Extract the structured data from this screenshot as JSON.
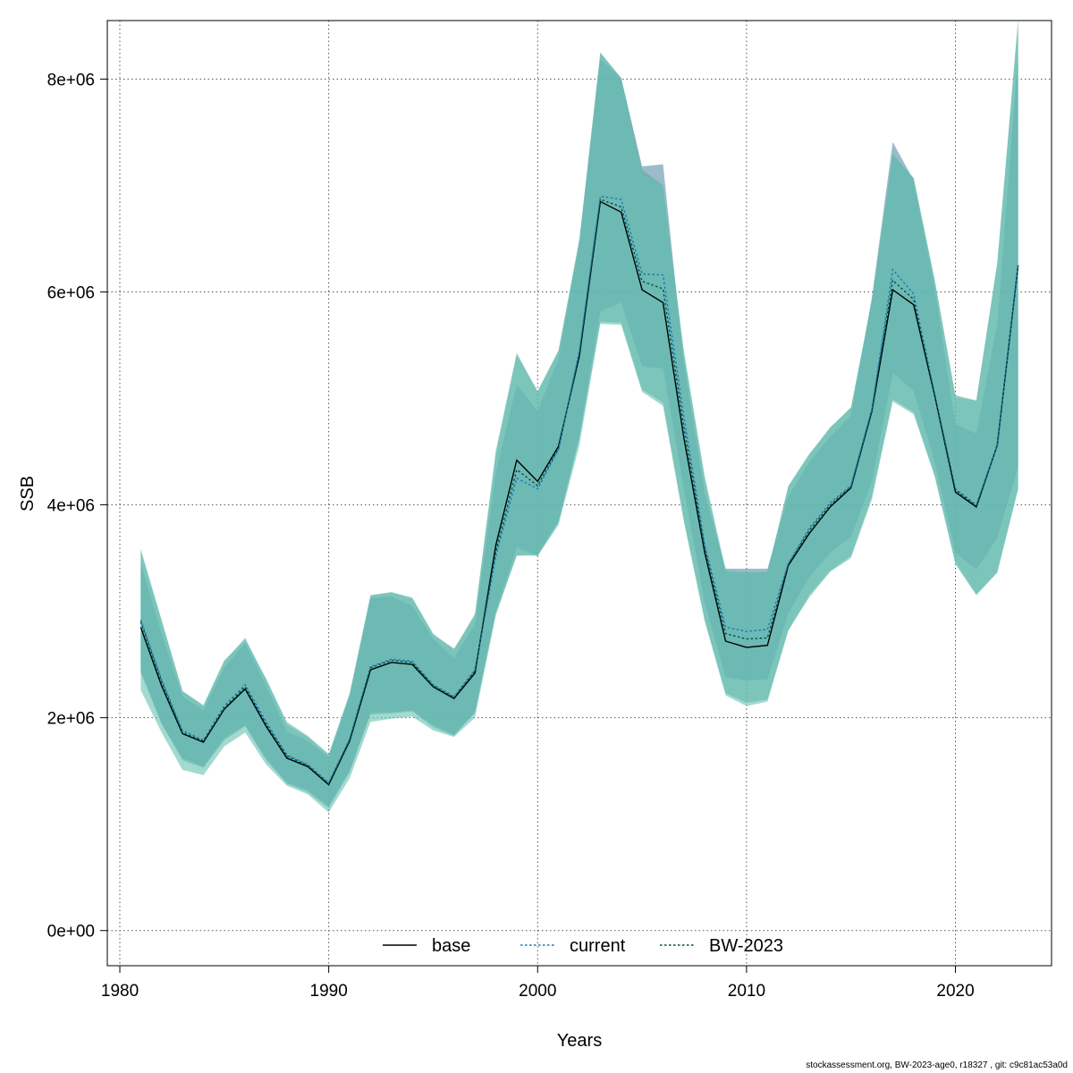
{
  "chart_data": {
    "type": "area",
    "xlabel": "Years",
    "ylabel": "SSB",
    "xlim": [
      1979.4,
      2024.6
    ],
    "ylim": [
      -330000,
      8550000
    ],
    "x_ticks": [
      1980,
      1990,
      2000,
      2010,
      2020
    ],
    "x_tick_labels": [
      "1980",
      "1990",
      "2000",
      "2010",
      "2020"
    ],
    "y_ticks": [
      0,
      2000000,
      4000000,
      6000000,
      8000000
    ],
    "y_tick_labels": [
      "0e+00",
      "2e+06",
      "4e+06",
      "6e+06",
      "8e+06"
    ],
    "grid": true,
    "legend_position": "bottom",
    "years": [
      1981,
      1982,
      1983,
      1984,
      1985,
      1986,
      1987,
      1988,
      1989,
      1990,
      1991,
      1992,
      1993,
      1994,
      1995,
      1996,
      1997,
      1998,
      1999,
      2000,
      2001,
      2002,
      2003,
      2004,
      2005,
      2006,
      2007,
      2008,
      2009,
      2010,
      2011,
      2012,
      2013,
      2014,
      2015,
      2016,
      2017,
      2018,
      2019,
      2020,
      2021,
      2022,
      2023
    ],
    "series": [
      {
        "name": "base",
        "color": "#000000",
        "dash": "solid",
        "band_color": "#5a8fa8",
        "values": [
          2850000,
          2300000,
          1850000,
          1770000,
          2080000,
          2270000,
          1920000,
          1620000,
          1540000,
          1370000,
          1780000,
          2450000,
          2520000,
          2500000,
          2290000,
          2180000,
          2420000,
          3620000,
          4420000,
          4220000,
          4550000,
          5400000,
          6850000,
          6750000,
          6020000,
          5900000,
          4630000,
          3550000,
          2720000,
          2660000,
          2680000,
          3430000,
          3730000,
          3980000,
          4160000,
          4880000,
          6020000,
          5880000,
          5030000,
          4120000,
          3980000,
          4560000,
          6250000
        ],
        "lower": [
          2450000,
          1950000,
          1620000,
          1540000,
          1810000,
          1930000,
          1620000,
          1390000,
          1320000,
          1170000,
          1500000,
          2050000,
          2050000,
          2070000,
          1930000,
          1840000,
          2050000,
          3000000,
          3600000,
          3520000,
          3850000,
          4650000,
          5820000,
          5900000,
          5300000,
          5280000,
          4150000,
          3080000,
          2380000,
          2350000,
          2360000,
          2980000,
          3320000,
          3550000,
          3700000,
          4220000,
          5240000,
          5070000,
          4410000,
          3550000,
          3390000,
          3690000,
          4350000
        ],
        "upper": [
          3450000,
          2790000,
          2200000,
          2070000,
          2470000,
          2700000,
          2300000,
          1870000,
          1780000,
          1630000,
          2200000,
          3120000,
          3140000,
          3050000,
          2740000,
          2560000,
          2880000,
          4300000,
          5130000,
          4880000,
          5370000,
          6480000,
          8190000,
          8010000,
          7180000,
          7200000,
          5330000,
          4110000,
          3400000,
          3400000,
          3400000,
          4080000,
          4400000,
          4640000,
          4840000,
          5950000,
          7410000,
          7050000,
          6040000,
          4760000,
          4670000,
          5700000,
          8220000
        ]
      },
      {
        "name": "current",
        "color": "#1f77b4",
        "dash": "dotted",
        "band_color": "#5ea8a8",
        "values": [
          2920000,
          2360000,
          1880000,
          1790000,
          2110000,
          2310000,
          1960000,
          1650000,
          1560000,
          1390000,
          1800000,
          2480000,
          2550000,
          2530000,
          2310000,
          2200000,
          2450000,
          3520000,
          4250000,
          4150000,
          4520000,
          5450000,
          6900000,
          6870000,
          6170000,
          6160000,
          4830000,
          3620000,
          2850000,
          2810000,
          2830000,
          3450000,
          3780000,
          4020000,
          4180000,
          4900000,
          6210000,
          5980000,
          5040000,
          4150000,
          4000000,
          4560000,
          6250000
        ],
        "lower": [
          2420000,
          1940000,
          1600000,
          1530000,
          1790000,
          1920000,
          1600000,
          1380000,
          1300000,
          1150000,
          1490000,
          2030000,
          2040000,
          2060000,
          1910000,
          1830000,
          2050000,
          2980000,
          3520000,
          3530000,
          3830000,
          4620000,
          5720000,
          5710000,
          5080000,
          4960000,
          3860000,
          2920000,
          2230000,
          2140000,
          2170000,
          2820000,
          3150000,
          3380000,
          3520000,
          4080000,
          4990000,
          4870000,
          4280000,
          3460000,
          3160000,
          3370000,
          4160000
        ],
        "upper": [
          3560000,
          2910000,
          2250000,
          2110000,
          2530000,
          2750000,
          2360000,
          1940000,
          1820000,
          1650000,
          2220000,
          3150000,
          3180000,
          3120000,
          2780000,
          2650000,
          2960000,
          4480000,
          5410000,
          5070000,
          5450000,
          6500000,
          8250000,
          8010000,
          7150000,
          7000000,
          5420000,
          4230000,
          3370000,
          3360000,
          3370000,
          4170000,
          4470000,
          4730000,
          4910000,
          5920000,
          7290000,
          7070000,
          6120000,
          5030000,
          4980000,
          6280000,
          8550000
        ]
      },
      {
        "name": "BW-2023",
        "color": "#004d4d",
        "dash": "dotted",
        "band_color": "#66c2b0",
        "values": [
          2900000,
          2340000,
          1860000,
          1780000,
          2090000,
          2290000,
          1940000,
          1640000,
          1550000,
          1380000,
          1790000,
          2470000,
          2540000,
          2520000,
          2300000,
          2190000,
          2440000,
          3560000,
          4330000,
          4180000,
          4530000,
          5420000,
          6870000,
          6800000,
          6100000,
          6030000,
          4730000,
          3590000,
          2790000,
          2740000,
          2750000,
          3440000,
          3760000,
          4000000,
          4170000,
          4890000,
          6110000,
          5930000,
          5040000,
          4140000,
          3990000,
          4560000,
          6250000
        ],
        "lower": [
          2260000,
          1860000,
          1510000,
          1460000,
          1730000,
          1860000,
          1560000,
          1360000,
          1280000,
          1110000,
          1430000,
          1960000,
          1990000,
          2010000,
          1880000,
          1820000,
          2000000,
          2960000,
          3530000,
          3520000,
          3810000,
          4560000,
          5700000,
          5690000,
          5060000,
          4930000,
          3840000,
          2900000,
          2210000,
          2110000,
          2150000,
          2820000,
          3130000,
          3370000,
          3500000,
          4050000,
          4970000,
          4850000,
          4270000,
          3440000,
          3150000,
          3360000,
          4140000
        ],
        "upper": [
          3590000,
          2920000,
          2250000,
          2120000,
          2540000,
          2730000,
          2370000,
          1960000,
          1830000,
          1660000,
          2230000,
          3150000,
          3180000,
          3130000,
          2790000,
          2640000,
          2980000,
          4510000,
          5430000,
          5060000,
          5450000,
          6480000,
          8250000,
          8010000,
          7100000,
          7000000,
          5450000,
          4270000,
          3390000,
          3370000,
          3370000,
          4180000,
          4480000,
          4720000,
          4920000,
          5920000,
          7300000,
          7070000,
          6120000,
          5010000,
          4980000,
          6250000,
          8550000
        ]
      }
    ]
  },
  "footer": {
    "text": "stockassessment.org, BW-2023-age0, r18327 , git: c9c81ac53a0d"
  }
}
